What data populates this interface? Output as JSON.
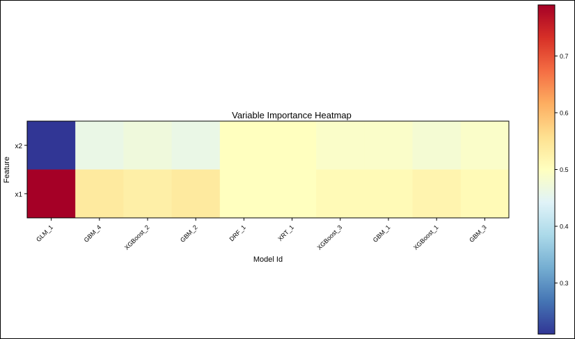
{
  "chart_data": {
    "type": "heatmap",
    "title": "Variable Importance Heatmap",
    "xlabel": "Model Id",
    "ylabel": "Feature",
    "x_categories": [
      "GLM_1",
      "GBM_4",
      "XGBoost_2",
      "GBM_2",
      "DRF_1",
      "XRT_1",
      "XGBoost_3",
      "GBM_1",
      "XGBoost_1",
      "GBM_3"
    ],
    "y_categories": [
      "x2",
      "x1"
    ],
    "values": [
      [
        0.21,
        0.46,
        0.47,
        0.46,
        0.5,
        0.5,
        0.49,
        0.49,
        0.48,
        0.49
      ],
      [
        0.79,
        0.54,
        0.53,
        0.54,
        0.5,
        0.5,
        0.51,
        0.51,
        0.52,
        0.51
      ]
    ],
    "colorbar": {
      "range": [
        0.21,
        0.79
      ],
      "ticks": [
        0.3,
        0.4,
        0.5,
        0.6,
        0.7
      ],
      "tick_labels": [
        "0.3",
        "0.4",
        "0.5",
        "0.6",
        "0.7"
      ],
      "colormap": "RdYlBu_r"
    },
    "grid": false,
    "legend": "colorbar-right"
  }
}
